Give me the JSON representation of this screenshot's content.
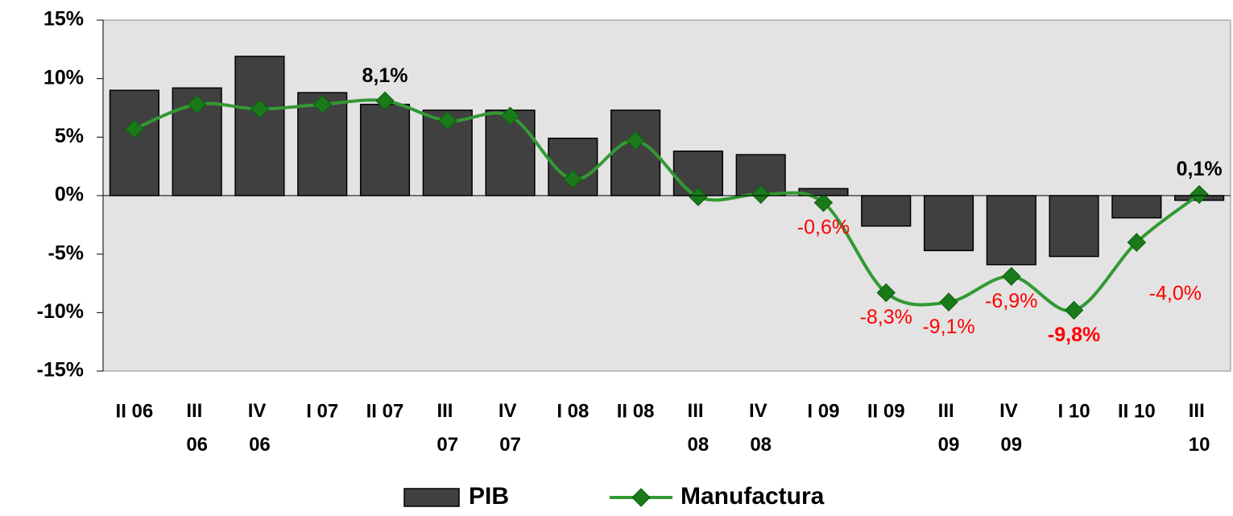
{
  "chart_data": {
    "type": "bar",
    "categories": [
      "II 06",
      "III 06",
      "IV 06",
      "I 07",
      "II 07",
      "III 07",
      "IV 07",
      "I 08",
      "II 08",
      "III 08",
      "IV 08",
      "I 09",
      "II 09",
      "III 09",
      "IV 09",
      "I 10",
      "II 10",
      "III 10"
    ],
    "series": [
      {
        "name": "PIB",
        "type": "bar",
        "color": "#404040",
        "values": [
          9,
          9.2,
          11.9,
          8.8,
          7.8,
          7.3,
          7.3,
          4.9,
          7.3,
          3.8,
          3.5,
          0.6,
          -2.6,
          -4.7,
          -5.9,
          -5.2,
          -1.9,
          -0.4
        ]
      },
      {
        "name": "Manufactura",
        "type": "line",
        "color": "#339933",
        "marker_color": "#1a7a1a",
        "values": [
          5.7,
          7.8,
          7.4,
          7.8,
          8.1,
          6.4,
          6.8,
          1.4,
          4.7,
          -0.1,
          0.1,
          -0.6,
          -8.3,
          -9.1,
          -6.9,
          -9.8,
          -4.0,
          0.1
        ],
        "value_labels": [
          null,
          null,
          null,
          null,
          "8,1%",
          null,
          null,
          null,
          null,
          null,
          null,
          "-0,6%",
          "-8,3%",
          "-9,1%",
          "-6,9%",
          "-9,8%",
          "-4,0%",
          "0,1%"
        ]
      }
    ],
    "ylim": [
      -15,
      15
    ],
    "yticks": [
      {
        "value": -15,
        "label": "-15%"
      },
      {
        "value": -10,
        "label": "-10%"
      },
      {
        "value": -5,
        "label": "-5%"
      },
      {
        "value": 0,
        "label": "0%"
      },
      {
        "value": 5,
        "label": "5%"
      },
      {
        "value": 10,
        "label": "10%"
      },
      {
        "value": 15,
        "label": "15%"
      }
    ],
    "grid": false,
    "legend": "bottom"
  }
}
